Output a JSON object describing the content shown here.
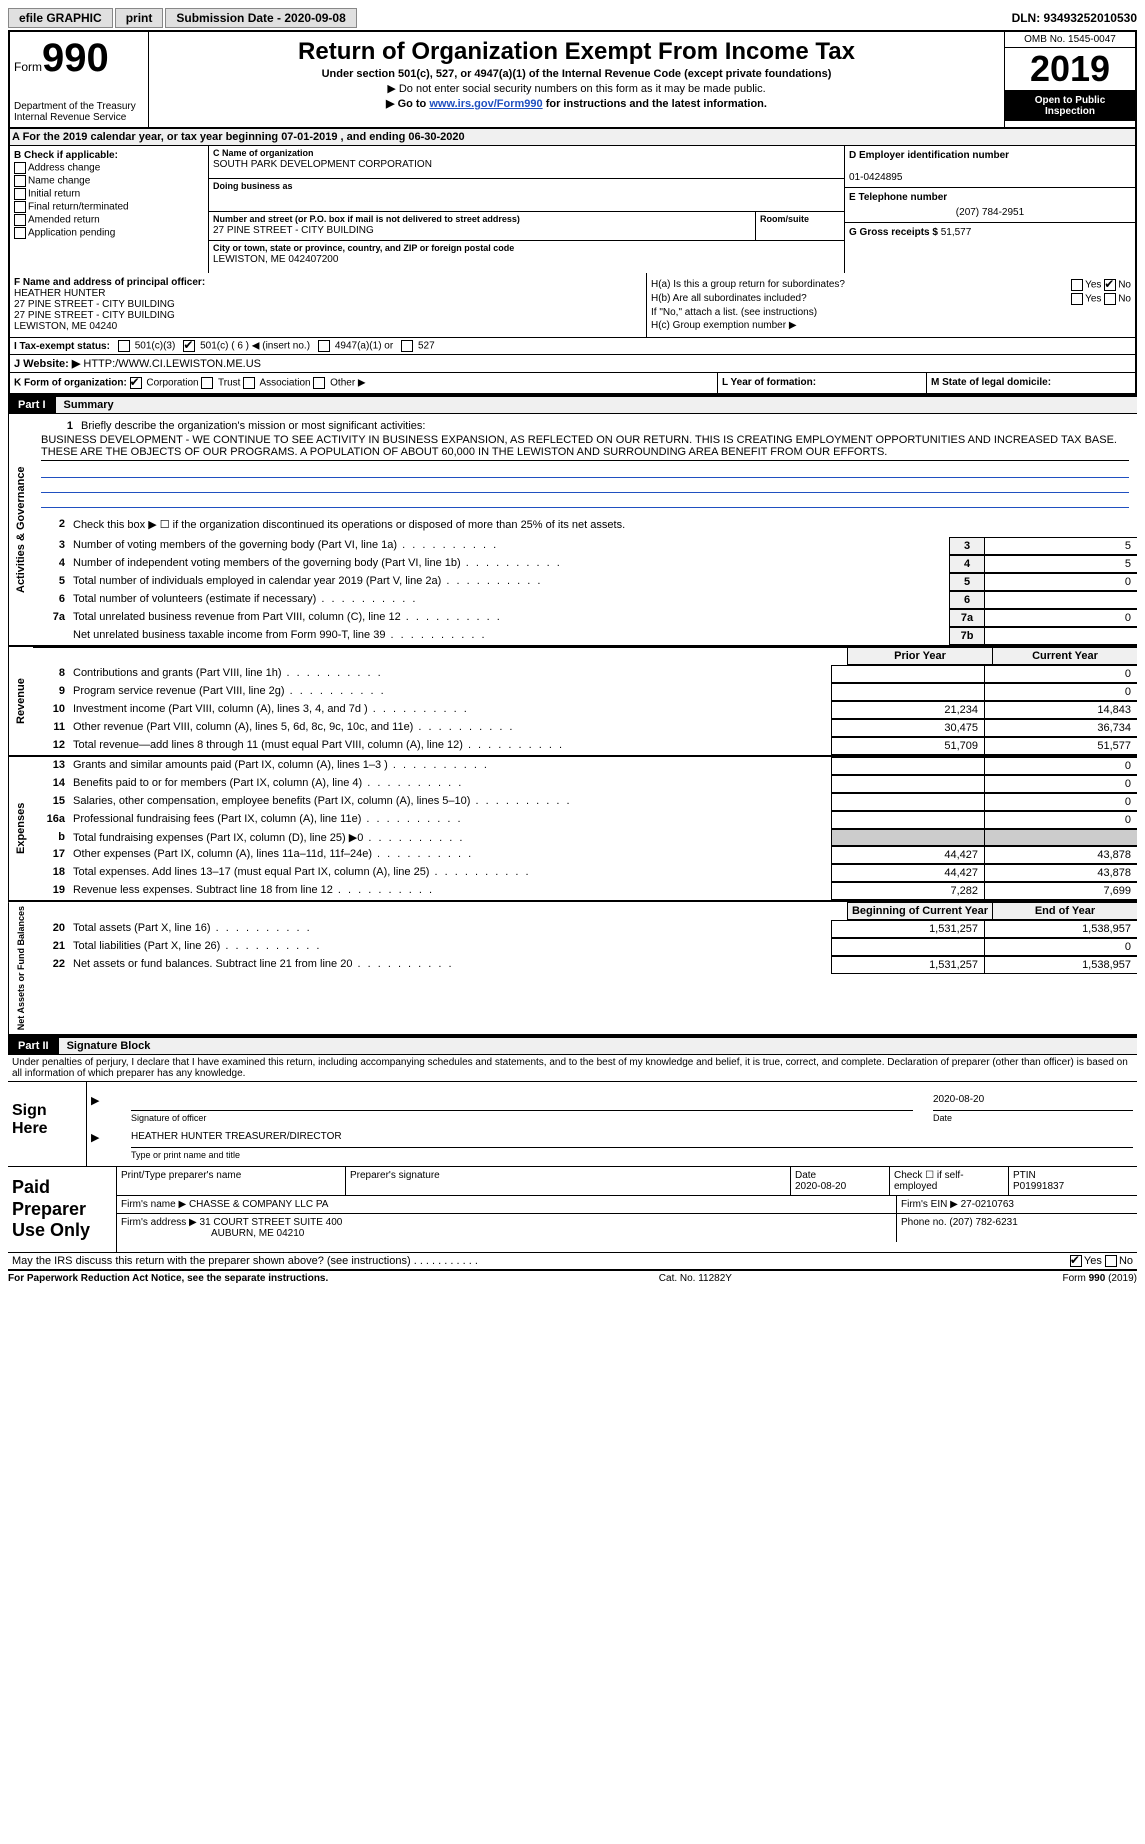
{
  "topbar": {
    "efile": "efile GRAPHIC",
    "print": "print",
    "submission": "Submission Date - 2020-09-08",
    "dln": "DLN: 93493252010530"
  },
  "header": {
    "form_prefix": "Form",
    "form_number": "990",
    "dept1": "Department of the Treasury",
    "dept2": "Internal Revenue Service",
    "title": "Return of Organization Exempt From Income Tax",
    "subtitle": "Under section 501(c), 527, or 4947(a)(1) of the Internal Revenue Code (except private foundations)",
    "note1": "▶ Do not enter social security numbers on this form as it may be made public.",
    "note2_prefix": "▶ Go to ",
    "note2_link": "www.irs.gov/Form990",
    "note2_suffix": " for instructions and the latest information.",
    "omb": "OMB No. 1545-0047",
    "year": "2019",
    "open": "Open to Public Inspection"
  },
  "line_a": "A For the 2019 calendar year, or tax year beginning 07-01-2019    , and ending 06-30-2020",
  "section_b": {
    "label": "B Check if applicable:",
    "items": [
      "Address change",
      "Name change",
      "Initial return",
      "Final return/terminated",
      "Amended return",
      "Application pending"
    ]
  },
  "section_c": {
    "name_label": "C Name of organization",
    "name": "SOUTH PARK DEVELOPMENT CORPORATION",
    "dba_label": "Doing business as",
    "addr_label": "Number and street (or P.O. box if mail is not delivered to street address)",
    "addr": "27 PINE STREET - CITY BUILDING",
    "room_label": "Room/suite",
    "city_label": "City or town, state or province, country, and ZIP or foreign postal code",
    "city": "LEWISTON, ME  042407200"
  },
  "section_de": {
    "d_label": "D Employer identification number",
    "d_val": "01-0424895",
    "e_label": "E Telephone number",
    "e_val": "(207) 784-2951",
    "g_label": "G Gross receipts $",
    "g_val": "51,577"
  },
  "section_f": {
    "label": "F Name and address of principal officer:",
    "name": "HEATHER HUNTER",
    "l1": "27 PINE STREET - CITY BUILDING",
    "l2": "27 PINE STREET - CITY BUILDING",
    "l3": "LEWISTON, ME  04240"
  },
  "section_h": {
    "ha": "H(a)  Is this a group return for subordinates?",
    "hb": "H(b)  Are all subordinates included?",
    "hb_note": "If \"No,\" attach a list. (see instructions)",
    "hc": "H(c)  Group exemption number ▶",
    "yes": "Yes",
    "no": "No"
  },
  "row_i": {
    "label": "I  Tax-exempt status:",
    "opts": [
      "501(c)(3)",
      "501(c) ( 6 ) ◀ (insert no.)",
      "4947(a)(1) or",
      "527"
    ]
  },
  "row_j": {
    "label": "J  Website: ▶",
    "val": "HTTP:/WWW.CI.LEWISTON.ME.US"
  },
  "row_k": {
    "label": "K Form of organization:",
    "opts": [
      "Corporation",
      "Trust",
      "Association",
      "Other ▶"
    ]
  },
  "row_l": "L Year of formation:",
  "row_m": "M State of legal domicile:",
  "part1": {
    "label": "Part I",
    "title": "Summary"
  },
  "summary": {
    "q1_label": "1",
    "q1": "Briefly describe the organization's mission or most significant activities:",
    "q1_text": "BUSINESS DEVELOPMENT - WE CONTINUE TO SEE ACTIVITY IN BUSINESS EXPANSION, AS REFLECTED ON OUR RETURN. THIS IS CREATING EMPLOYMENT OPPORTUNITIES AND INCREASED TAX BASE. THESE ARE THE OBJECTS OF OUR PROGRAMS. A POPULATION OF ABOUT 60,000 IN THE LEWISTON AND SURROUNDING AREA BENEFIT FROM OUR EFFORTS.",
    "q2": "Check this box ▶ ☐ if the organization discontinued its operations or disposed of more than 25% of its net assets.",
    "lines_gov": [
      {
        "n": "3",
        "d": "Number of voting members of the governing body (Part VI, line 1a)",
        "box": "3",
        "v": "5"
      },
      {
        "n": "4",
        "d": "Number of independent voting members of the governing body (Part VI, line 1b)",
        "box": "4",
        "v": "5"
      },
      {
        "n": "5",
        "d": "Total number of individuals employed in calendar year 2019 (Part V, line 2a)",
        "box": "5",
        "v": "0"
      },
      {
        "n": "6",
        "d": "Total number of volunteers (estimate if necessary)",
        "box": "6",
        "v": ""
      },
      {
        "n": "7a",
        "d": "Total unrelated business revenue from Part VIII, column (C), line 12",
        "box": "7a",
        "v": "0"
      },
      {
        "n": "",
        "d": "Net unrelated business taxable income from Form 990-T, line 39",
        "box": "7b",
        "v": ""
      }
    ],
    "prior_label": "Prior Year",
    "curr_label": "Current Year",
    "rev": [
      {
        "n": "8",
        "d": "Contributions and grants (Part VIII, line 1h)",
        "p": "",
        "c": "0"
      },
      {
        "n": "9",
        "d": "Program service revenue (Part VIII, line 2g)",
        "p": "",
        "c": "0"
      },
      {
        "n": "10",
        "d": "Investment income (Part VIII, column (A), lines 3, 4, and 7d )",
        "p": "21,234",
        "c": "14,843"
      },
      {
        "n": "11",
        "d": "Other revenue (Part VIII, column (A), lines 5, 6d, 8c, 9c, 10c, and 11e)",
        "p": "30,475",
        "c": "36,734"
      },
      {
        "n": "12",
        "d": "Total revenue—add lines 8 through 11 (must equal Part VIII, column (A), line 12)",
        "p": "51,709",
        "c": "51,577"
      }
    ],
    "exp": [
      {
        "n": "13",
        "d": "Grants and similar amounts paid (Part IX, column (A), lines 1–3 )",
        "p": "",
        "c": "0"
      },
      {
        "n": "14",
        "d": "Benefits paid to or for members (Part IX, column (A), line 4)",
        "p": "",
        "c": "0"
      },
      {
        "n": "15",
        "d": "Salaries, other compensation, employee benefits (Part IX, column (A), lines 5–10)",
        "p": "",
        "c": "0"
      },
      {
        "n": "16a",
        "d": "Professional fundraising fees (Part IX, column (A), line 11e)",
        "p": "",
        "c": "0"
      },
      {
        "n": "b",
        "d": "Total fundraising expenses (Part IX, column (D), line 25) ▶0",
        "p": "GREY",
        "c": "GREY"
      },
      {
        "n": "17",
        "d": "Other expenses (Part IX, column (A), lines 11a–11d, 11f–24e)",
        "p": "44,427",
        "c": "43,878"
      },
      {
        "n": "18",
        "d": "Total expenses. Add lines 13–17 (must equal Part IX, column (A), line 25)",
        "p": "44,427",
        "c": "43,878"
      },
      {
        "n": "19",
        "d": "Revenue less expenses. Subtract line 18 from line 12",
        "p": "7,282",
        "c": "7,699"
      }
    ],
    "begin_label": "Beginning of Current Year",
    "end_label": "End of Year",
    "net": [
      {
        "n": "20",
        "d": "Total assets (Part X, line 16)",
        "p": "1,531,257",
        "c": "1,538,957"
      },
      {
        "n": "21",
        "d": "Total liabilities (Part X, line 26)",
        "p": "",
        "c": "0"
      },
      {
        "n": "22",
        "d": "Net assets or fund balances. Subtract line 21 from line 20",
        "p": "1,531,257",
        "c": "1,538,957"
      }
    ]
  },
  "tabs": {
    "gov": "Activities & Governance",
    "rev": "Revenue",
    "exp": "Expenses",
    "net": "Net Assets or Fund Balances"
  },
  "part2": {
    "label": "Part II",
    "title": "Signature Block"
  },
  "sig": {
    "declaration": "Under penalties of perjury, I declare that I have examined this return, including accompanying schedules and statements, and to the best of my knowledge and belief, it is true, correct, and complete. Declaration of preparer (other than officer) is based on all information of which preparer has any knowledge.",
    "sign_here": "Sign Here",
    "date": "2020-08-20",
    "sig_of_officer": "Signature of officer",
    "date_label": "Date",
    "name_title": "HEATHER HUNTER  TREASURER/DIRECTOR",
    "name_caption": "Type or print name and title"
  },
  "paid": {
    "label": "Paid Preparer Use Only",
    "print_name_label": "Print/Type preparer's name",
    "prep_sig_label": "Preparer's signature",
    "date_label": "Date",
    "date": "2020-08-20",
    "check_label": "Check ☐ if self-employed",
    "ptin_label": "PTIN",
    "ptin": "P01991837",
    "firm_name_label": "Firm's name    ▶",
    "firm_name": "CHASSE & COMPANY LLC PA",
    "firm_ein_label": "Firm's EIN ▶",
    "firm_ein": "27-0210763",
    "firm_addr_label": "Firm's address ▶",
    "firm_addr1": "31 COURT STREET SUITE 400",
    "firm_addr2": "AUBURN, ME  04210",
    "phone_label": "Phone no.",
    "phone": "(207) 782-6231"
  },
  "discuss": {
    "text": "May the IRS discuss this return with the preparer shown above? (see instructions)",
    "yes": "Yes",
    "no": "No"
  },
  "footer": {
    "left": "For Paperwork Reduction Act Notice, see the separate instructions.",
    "mid": "Cat. No. 11282Y",
    "right": "Form 990 (2019)"
  },
  "colors": {
    "link": "#2050c0",
    "black": "#000000"
  }
}
